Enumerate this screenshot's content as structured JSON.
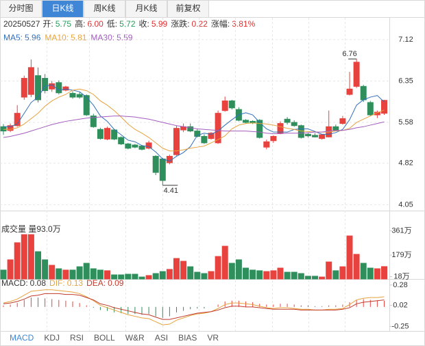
{
  "tabs": [
    "分时图",
    "日K线",
    "周K线",
    "月K线",
    "前复权"
  ],
  "active_tab": "日K线",
  "info": {
    "date": "20250527",
    "fields": [
      {
        "label": "开:",
        "value": "5.75",
        "color": "#2a9d5b"
      },
      {
        "label": "高:",
        "value": "6.00",
        "color": "#e03030"
      },
      {
        "label": "低:",
        "value": "5.72",
        "color": "#2a9d5b"
      },
      {
        "label": "收:",
        "value": "5.99",
        "color": "#e03030"
      },
      {
        "label": "涨跌:",
        "value": "0.22",
        "color": "#e03030"
      },
      {
        "label": "涨幅:",
        "value": "3.81%",
        "color": "#e03030"
      }
    ]
  },
  "chart_data": {
    "type": "candlestick",
    "up_color": "#e8423f",
    "down_color": "#2f8f5c",
    "ylim": [
      3.94,
      7.5
    ],
    "yticks": [
      7.12,
      6.35,
      5.58,
      4.82,
      4.05
    ],
    "grid": true,
    "open": [
      5.5,
      5.43,
      5.52,
      6.05,
      6.1,
      6.45,
      6.4,
      6.2,
      6.32,
      6.18,
      6.12,
      6.1,
      6.08,
      5.7,
      5.45,
      5.27,
      5.44,
      5.3,
      5.18,
      5.16,
      5.14,
      5.1,
      4.95,
      4.9,
      4.83,
      4.98,
      5.44,
      5.5,
      5.42,
      5.32,
      5.28,
      5.2,
      5.8,
      5.98,
      5.82,
      5.62,
      5.6,
      5.62,
      5.12,
      5.24,
      5.38,
      5.64,
      5.58,
      5.52,
      5.36,
      5.34,
      5.28,
      5.31,
      5.5,
      5.56,
      6.1,
      6.25,
      6.25,
      5.95,
      5.72,
      5.75
    ],
    "high": [
      5.55,
      5.56,
      5.9,
      6.45,
      6.75,
      6.6,
      6.48,
      6.35,
      6.36,
      6.26,
      6.16,
      6.14,
      6.1,
      5.74,
      5.48,
      5.5,
      5.46,
      5.32,
      5.2,
      5.18,
      5.16,
      5.24,
      4.97,
      4.92,
      4.98,
      5.52,
      5.56,
      5.56,
      5.46,
      5.36,
      5.4,
      5.8,
      6.06,
      6.0,
      5.86,
      5.64,
      5.62,
      5.64,
      5.26,
      5.34,
      5.6,
      5.68,
      5.62,
      5.54,
      5.38,
      5.38,
      5.36,
      5.8,
      5.54,
      5.7,
      6.52,
      6.76,
      6.28,
      5.98,
      5.8,
      6.0
    ],
    "low": [
      5.35,
      5.4,
      5.5,
      6.0,
      6.05,
      5.95,
      6.12,
      6.15,
      6.1,
      6.16,
      6.02,
      6.02,
      5.7,
      5.48,
      5.26,
      5.25,
      5.25,
      5.16,
      5.08,
      5.1,
      5.06,
      5.08,
      4.6,
      4.41,
      4.8,
      4.96,
      5.4,
      5.4,
      5.3,
      5.18,
      5.26,
      5.18,
      5.78,
      5.82,
      5.6,
      5.56,
      5.55,
      5.28,
      5.08,
      5.2,
      5.36,
      5.54,
      5.5,
      5.28,
      5.3,
      5.3,
      5.26,
      5.3,
      5.42,
      5.54,
      6.08,
      6.22,
      5.96,
      5.7,
      5.66,
      5.72
    ],
    "close": [
      5.42,
      5.52,
      5.75,
      6.4,
      6.6,
      6.0,
      6.17,
      6.3,
      6.13,
      6.24,
      6.05,
      6.05,
      5.72,
      5.5,
      5.28,
      5.47,
      5.27,
      5.18,
      5.1,
      5.12,
      5.08,
      5.2,
      4.65,
      4.5,
      4.95,
      5.47,
      5.5,
      5.42,
      5.32,
      5.2,
      5.38,
      5.75,
      5.98,
      5.85,
      5.62,
      5.58,
      5.57,
      5.3,
      5.22,
      5.32,
      5.56,
      5.58,
      5.52,
      5.3,
      5.33,
      5.31,
      5.35,
      5.5,
      5.44,
      5.65,
      6.2,
      6.7,
      6.0,
      5.72,
      5.77,
      5.99
    ],
    "high_label": 6.76,
    "low_label": 4.41,
    "series": [
      {
        "name": "MA5:",
        "last": 5.96,
        "color": "#2f6fba",
        "values": [
          5.5,
          5.5,
          5.55,
          5.75,
          5.95,
          6.05,
          6.25,
          6.28,
          6.18,
          6.2,
          6.18,
          6.15,
          6.05,
          5.9,
          5.7,
          5.6,
          5.45,
          5.35,
          5.25,
          5.22,
          5.15,
          5.13,
          5.03,
          4.9,
          4.86,
          4.95,
          5.02,
          5.13,
          5.34,
          5.38,
          5.36,
          5.42,
          5.53,
          5.63,
          5.72,
          5.76,
          5.72,
          5.58,
          5.46,
          5.4,
          5.4,
          5.4,
          5.45,
          5.46,
          5.46,
          5.41,
          5.36,
          5.36,
          5.39,
          5.45,
          5.63,
          5.9,
          6.0,
          6.05,
          6.08,
          5.96
        ]
      },
      {
        "name": "MA10:",
        "last": 5.81,
        "color": "#e6a23c",
        "values": [
          5.45,
          5.45,
          5.48,
          5.55,
          5.65,
          5.75,
          5.88,
          5.98,
          6.05,
          6.1,
          6.18,
          6.2,
          6.17,
          6.1,
          5.98,
          5.9,
          5.8,
          5.68,
          5.55,
          5.45,
          5.38,
          5.3,
          5.2,
          5.1,
          5.05,
          5.05,
          5.07,
          5.1,
          5.12,
          5.14,
          5.2,
          5.26,
          5.33,
          5.46,
          5.53,
          5.56,
          5.57,
          5.56,
          5.55,
          5.53,
          5.5,
          5.47,
          5.45,
          5.42,
          5.41,
          5.4,
          5.4,
          5.4,
          5.42,
          5.43,
          5.47,
          5.58,
          5.64,
          5.7,
          5.76,
          5.81
        ]
      },
      {
        "name": "MA30:",
        "last": 5.59,
        "color": "#a35bbf",
        "values": [
          5.3,
          5.32,
          5.35,
          5.38,
          5.42,
          5.46,
          5.5,
          5.54,
          5.57,
          5.6,
          5.62,
          5.64,
          5.66,
          5.67,
          5.68,
          5.69,
          5.7,
          5.7,
          5.69,
          5.68,
          5.66,
          5.64,
          5.61,
          5.58,
          5.55,
          5.52,
          5.5,
          5.48,
          5.46,
          5.45,
          5.44,
          5.43,
          5.42,
          5.42,
          5.42,
          5.42,
          5.41,
          5.4,
          5.38,
          5.37,
          5.37,
          5.38,
          5.38,
          5.38,
          5.39,
          5.4,
          5.4,
          5.42,
          5.43,
          5.43,
          5.45,
          5.48,
          5.5,
          5.53,
          5.56,
          5.59
        ]
      }
    ],
    "volume": {
      "title": "成交量 量93.0万",
      "ylim": [
        0,
        400
      ],
      "yticks": [
        {
          "value": 361,
          "label": "361万"
        },
        {
          "value": 179,
          "label": "179万"
        },
        {
          "value": 18,
          "label": "18万"
        }
      ],
      "values": [
        67,
        144,
        272,
        333,
        333,
        205,
        144,
        103,
        77,
        67,
        67,
        92,
        118,
        77,
        67,
        62,
        31,
        31,
        36,
        36,
        15,
        26,
        41,
        56,
        72,
        154,
        133,
        92,
        51,
        41,
        56,
        169,
        246,
        118,
        144,
        82,
        67,
        62,
        56,
        62,
        82,
        51,
        51,
        41,
        21,
        21,
        15,
        128,
        62,
        92,
        323,
        185,
        118,
        82,
        77,
        93
      ]
    },
    "macd": {
      "ylim": [
        -0.29,
        0.34
      ],
      "yticks": [
        0.28,
        0.02,
        -0.25
      ],
      "labels": [
        {
          "name": "MACD:",
          "value": 0.08,
          "color": "#333333"
        },
        {
          "name": "DIF:",
          "value": 0.13,
          "color": "#e6a23c"
        },
        {
          "name": "DEA:",
          "value": 0.09,
          "color": "#c0392b"
        }
      ],
      "bars": [
        0.02,
        0.03,
        0.05,
        0.09,
        0.12,
        0.12,
        0.11,
        0.1,
        0.09,
        0.08,
        0.07,
        0.05,
        0.02,
        -0.01,
        -0.04,
        -0.05,
        -0.07,
        -0.08,
        -0.09,
        -0.09,
        -0.1,
        -0.09,
        -0.12,
        -0.14,
        -0.12,
        -0.07,
        -0.05,
        -0.03,
        -0.02,
        -0.02,
        0.0,
        0.03,
        0.07,
        0.08,
        0.08,
        0.07,
        0.06,
        0.04,
        0.03,
        0.03,
        0.04,
        0.04,
        0.03,
        0.02,
        0.02,
        0.01,
        0.01,
        0.02,
        0.02,
        0.03,
        0.06,
        0.09,
        0.1,
        0.09,
        0.08,
        0.08
      ],
      "dif": [
        0.05,
        0.07,
        0.1,
        0.15,
        0.2,
        0.21,
        0.22,
        0.22,
        0.21,
        0.2,
        0.19,
        0.17,
        0.13,
        0.08,
        0.02,
        -0.01,
        -0.04,
        -0.07,
        -0.1,
        -0.12,
        -0.14,
        -0.15,
        -0.19,
        -0.23,
        -0.22,
        -0.17,
        -0.14,
        -0.11,
        -0.09,
        -0.08,
        -0.06,
        -0.02,
        0.03,
        0.05,
        0.05,
        0.04,
        0.03,
        0.01,
        -0.01,
        -0.02,
        -0.01,
        -0.01,
        -0.02,
        -0.03,
        -0.03,
        -0.04,
        -0.04,
        -0.03,
        -0.03,
        -0.02,
        0.03,
        0.09,
        0.11,
        0.12,
        0.12,
        0.13
      ],
      "dea": [
        0.04,
        0.05,
        0.07,
        0.1,
        0.14,
        0.15,
        0.17,
        0.17,
        0.17,
        0.16,
        0.16,
        0.15,
        0.12,
        0.09,
        0.04,
        0.02,
        -0.01,
        -0.03,
        -0.05,
        -0.07,
        -0.09,
        -0.1,
        -0.13,
        -0.16,
        -0.16,
        -0.14,
        -0.12,
        -0.1,
        -0.08,
        -0.07,
        -0.06,
        -0.04,
        -0.01,
        0.01,
        0.01,
        0.0,
        0.0,
        -0.01,
        -0.02,
        -0.03,
        -0.03,
        -0.03,
        -0.03,
        -0.04,
        -0.04,
        -0.04,
        -0.04,
        -0.04,
        -0.04,
        -0.03,
        -0.01,
        0.04,
        0.06,
        0.07,
        0.08,
        0.09
      ]
    }
  },
  "indicator_tabs": [
    "MACD",
    "KDJ",
    "RSI",
    "BOLL",
    "W&R",
    "ASI",
    "BIAS",
    "VR"
  ],
  "active_indicator": "MACD"
}
